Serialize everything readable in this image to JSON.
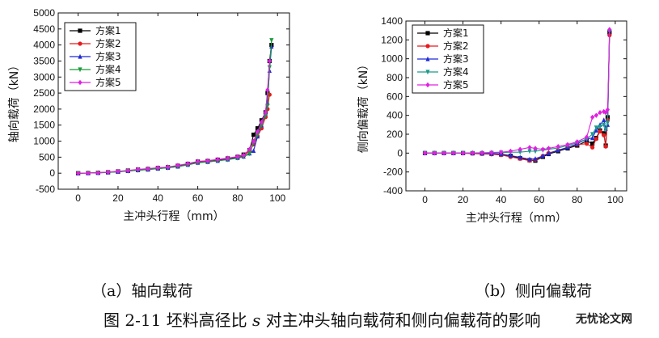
{
  "chart_data": [
    {
      "type": "line",
      "xlabel": "主冲头行程（mm）",
      "ylabel": "轴向载荷（kN）",
      "xlim": [
        -10,
        106
      ],
      "ylim": [
        -500,
        5000
      ],
      "xticks": [
        0,
        20,
        40,
        60,
        80,
        100
      ],
      "yticks": [
        -500,
        0,
        500,
        1000,
        1500,
        2000,
        2500,
        3000,
        3500,
        4000,
        4500,
        5000
      ],
      "grid": false,
      "legend_position": "top-left",
      "series": [
        {
          "name": "方案1",
          "color": "#000000",
          "marker": "square",
          "x": [
            0,
            5,
            10,
            15,
            20,
            25,
            30,
            35,
            40,
            45,
            50,
            55,
            60,
            65,
            70,
            75,
            80,
            83,
            86,
            88,
            90,
            92,
            94,
            95,
            96,
            97
          ],
          "y": [
            0,
            5,
            15,
            30,
            55,
            80,
            110,
            130,
            160,
            185,
            230,
            290,
            360,
            380,
            420,
            460,
            510,
            580,
            720,
            1200,
            1400,
            1650,
            1900,
            2500,
            3500,
            4000
          ]
        },
        {
          "name": "方案2",
          "color": "#e8191c",
          "marker": "circle",
          "x": [
            0,
            5,
            10,
            15,
            20,
            25,
            30,
            35,
            40,
            45,
            50,
            55,
            60,
            65,
            70,
            75,
            80,
            83,
            86,
            88,
            90,
            92,
            94,
            95,
            96
          ],
          "y": [
            0,
            5,
            15,
            30,
            50,
            75,
            100,
            120,
            150,
            175,
            215,
            275,
            340,
            365,
            400,
            440,
            490,
            550,
            680,
            900,
            1150,
            1400,
            1750,
            2000,
            2450
          ]
        },
        {
          "name": "方案3",
          "color": "#1f2ad6",
          "marker": "triangle-up",
          "x": [
            0,
            5,
            10,
            15,
            20,
            25,
            30,
            35,
            40,
            45,
            50,
            55,
            60,
            65,
            70,
            75,
            80,
            83,
            86,
            88,
            90,
            92,
            94,
            95,
            96,
            97
          ],
          "y": [
            0,
            5,
            12,
            25,
            45,
            70,
            95,
            115,
            145,
            170,
            210,
            265,
            330,
            355,
            390,
            430,
            480,
            520,
            620,
            700,
            1150,
            1500,
            1850,
            2200,
            3200,
            3950
          ]
        },
        {
          "name": "方案4",
          "color": "#1a9a3a",
          "marker": "triangle-down",
          "x": [
            0,
            5,
            10,
            15,
            20,
            25,
            30,
            35,
            40,
            45,
            50,
            55,
            60,
            65,
            70,
            75,
            80,
            83,
            86,
            88,
            90,
            92,
            94,
            95,
            96,
            97
          ],
          "y": [
            0,
            5,
            10,
            22,
            42,
            65,
            90,
            110,
            140,
            165,
            205,
            260,
            325,
            350,
            385,
            420,
            470,
            510,
            610,
            950,
            1200,
            1500,
            1800,
            2100,
            3300,
            4150
          ]
        },
        {
          "name": "方案5",
          "color": "#e020e0",
          "marker": "diamond",
          "x": [
            0,
            5,
            10,
            15,
            20,
            25,
            30,
            35,
            40,
            45,
            50,
            55,
            60,
            65,
            70,
            75,
            80,
            83,
            86,
            88,
            90,
            92,
            94,
            95,
            96
          ],
          "y": [
            0,
            5,
            15,
            35,
            60,
            85,
            120,
            140,
            170,
            195,
            245,
            300,
            370,
            390,
            430,
            470,
            520,
            560,
            750,
            1000,
            1300,
            1600,
            1900,
            2600,
            3500
          ]
        }
      ]
    },
    {
      "type": "line",
      "xlabel": "主冲头行程（mm）",
      "ylabel": "侧向偏载荷（kN）",
      "xlim": [
        -10,
        106
      ],
      "ylim": [
        -400,
        1400
      ],
      "xticks": [
        0,
        20,
        40,
        60,
        80,
        100
      ],
      "yticks": [
        -400,
        -200,
        0,
        200,
        400,
        600,
        800,
        1000,
        1200,
        1400
      ],
      "grid": false,
      "legend_position": "top-left",
      "series": [
        {
          "name": "方案1",
          "color": "#000000",
          "marker": "square",
          "x": [
            0,
            5,
            10,
            15,
            20,
            25,
            30,
            35,
            40,
            45,
            50,
            55,
            58,
            62,
            65,
            70,
            75,
            80,
            85,
            88,
            90,
            92,
            94,
            95,
            96,
            97
          ],
          "y": [
            0,
            0,
            0,
            0,
            0,
            -2,
            -5,
            -8,
            -15,
            -30,
            -55,
            -75,
            -80,
            -40,
            -10,
            20,
            50,
            80,
            130,
            100,
            160,
            240,
            210,
            80,
            380,
            1280
          ]
        },
        {
          "name": "方案2",
          "color": "#e8191c",
          "marker": "circle",
          "x": [
            0,
            5,
            10,
            15,
            20,
            25,
            30,
            35,
            40,
            45,
            50,
            55,
            58,
            62,
            65,
            70,
            75,
            80,
            85,
            88,
            90,
            92,
            94,
            95,
            96,
            97
          ],
          "y": [
            0,
            0,
            0,
            0,
            -2,
            -5,
            -8,
            -12,
            -20,
            -40,
            -60,
            -80,
            -70,
            -30,
            0,
            30,
            60,
            90,
            100,
            60,
            150,
            230,
            190,
            70,
            350,
            1250
          ]
        },
        {
          "name": "方案3",
          "color": "#1f2ad6",
          "marker": "triangle-up",
          "x": [
            0,
            5,
            10,
            15,
            20,
            25,
            30,
            35,
            40,
            45,
            50,
            55,
            58,
            62,
            65,
            70,
            75,
            80,
            85,
            88,
            90,
            92,
            94,
            95,
            96,
            97
          ],
          "y": [
            0,
            0,
            0,
            0,
            0,
            -1,
            -3,
            -5,
            -10,
            -25,
            -45,
            -65,
            -60,
            -30,
            -5,
            30,
            60,
            100,
            150,
            160,
            240,
            300,
            350,
            260,
            300,
            1300
          ]
        },
        {
          "name": "方案4",
          "color": "#1a9a8a",
          "marker": "triangle-down",
          "x": [
            0,
            5,
            10,
            15,
            20,
            25,
            30,
            35,
            40,
            45,
            50,
            55,
            58,
            62,
            65,
            70,
            75,
            80,
            85,
            88,
            90,
            92,
            94,
            95,
            96,
            97
          ],
          "y": [
            0,
            0,
            0,
            0,
            0,
            0,
            0,
            2,
            5,
            10,
            10,
            20,
            20,
            30,
            40,
            55,
            80,
            110,
            150,
            200,
            270,
            280,
            300,
            250,
            320,
            1290
          ]
        },
        {
          "name": "方案5",
          "color": "#e020e0",
          "marker": "diamond",
          "x": [
            0,
            5,
            10,
            15,
            20,
            25,
            30,
            35,
            40,
            45,
            50,
            55,
            58,
            62,
            65,
            70,
            75,
            80,
            85,
            88,
            90,
            92,
            94,
            95,
            96,
            97
          ],
          "y": [
            0,
            0,
            0,
            0,
            0,
            2,
            4,
            6,
            10,
            20,
            40,
            60,
            50,
            40,
            50,
            70,
            90,
            120,
            170,
            380,
            400,
            430,
            440,
            430,
            460,
            1310
          ]
        }
      ]
    }
  ],
  "captions": {
    "a": "（a）轴向载荷",
    "b": "（b）侧向偏载荷"
  },
  "figure_title": {
    "prefix": "图 2-11 坯料高径比",
    "var": "s",
    "suffix": "对主冲头轴向载荷和侧向偏载荷的影响"
  },
  "watermark": "无忧论文网"
}
